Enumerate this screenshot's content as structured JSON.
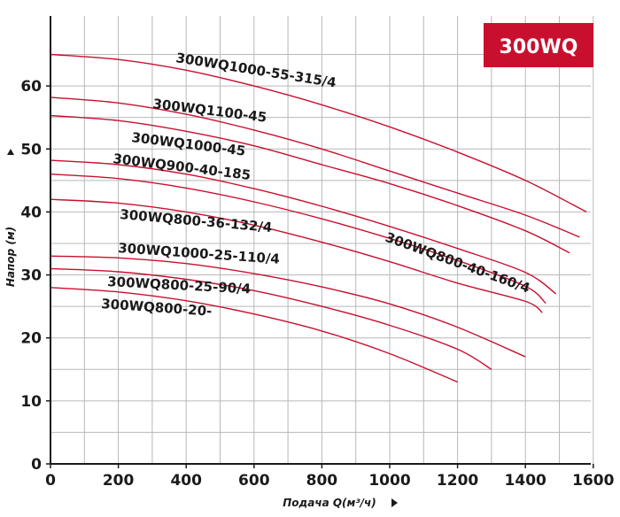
{
  "badge": {
    "text": "300WQ",
    "color": "#c8102e"
  },
  "colors": {
    "curve": "#c8102e",
    "grid": "#b8b8b8",
    "axis": "#1a1a1a"
  },
  "chart_data": {
    "type": "line",
    "title": "",
    "xlabel": "Подача Q(м³/ч)",
    "ylabel": "Напор (м)",
    "xlim": [
      0,
      1600
    ],
    "ylim": [
      0,
      65
    ],
    "xticks": [
      0,
      200,
      400,
      600,
      800,
      1000,
      1200,
      1400,
      1600
    ],
    "yticks": [
      0,
      10,
      20,
      30,
      40,
      50,
      60
    ],
    "grid": true,
    "series": [
      {
        "name": "300WQ1000-55-315/4",
        "x": [
          0,
          200,
          400,
          600,
          800,
          1000,
          1200,
          1400,
          1580
        ],
        "y": [
          65,
          64.2,
          62.5,
          60,
          57,
          53.5,
          49.5,
          45,
          40
        ]
      },
      {
        "name": "300WQ1100-45",
        "x": [
          0,
          200,
          400,
          600,
          800,
          1000,
          1200,
          1400,
          1560
        ],
        "y": [
          58.2,
          57.3,
          55.5,
          53,
          50,
          46.5,
          43,
          39.5,
          36
        ]
      },
      {
        "name": "300WQ1000-45",
        "x": [
          0,
          200,
          400,
          600,
          800,
          1000,
          1200,
          1400,
          1530
        ],
        "y": [
          55.3,
          54.5,
          52.8,
          50.5,
          47.5,
          44.5,
          41,
          37,
          33.5
        ]
      },
      {
        "name": "300WQ900-40-185",
        "x": [
          0,
          200,
          400,
          600,
          800,
          1000,
          1200,
          1400,
          1490
        ],
        "y": [
          48.2,
          47.5,
          46,
          43.7,
          40.9,
          37.7,
          34.2,
          30.4,
          27
        ]
      },
      {
        "name": "300WQ800-40-160/4",
        "x": [
          0,
          200,
          400,
          600,
          800,
          1000,
          1200,
          1400,
          1460
        ],
        "y": [
          46,
          45.3,
          43.8,
          41.6,
          38.9,
          35.8,
          32.3,
          28.2,
          25.5
        ]
      },
      {
        "name": "300WQ800-36-132/4",
        "x": [
          0,
          200,
          400,
          600,
          800,
          1000,
          1200,
          1400,
          1450
        ],
        "y": [
          42,
          41.4,
          40,
          37.9,
          35.2,
          32.1,
          28.7,
          25.8,
          24
        ]
      },
      {
        "name": "300WQ1000-25-110/4",
        "x": [
          0,
          200,
          400,
          600,
          800,
          1000,
          1200,
          1400
        ],
        "y": [
          33,
          32.7,
          31.8,
          30.2,
          28.1,
          25.4,
          21.7,
          17
        ]
      },
      {
        "name": "300WQ800-25-90/4",
        "x": [
          0,
          200,
          400,
          600,
          800,
          1000,
          1200,
          1300
        ],
        "y": [
          31,
          30.5,
          29.3,
          27.5,
          25,
          22,
          18.2,
          15
        ]
      },
      {
        "name": "300WQ800-20-",
        "x": [
          0,
          200,
          400,
          600,
          800,
          1000,
          1200
        ],
        "y": [
          28,
          27.3,
          25.9,
          23.8,
          21.1,
          17.5,
          13
        ]
      }
    ],
    "labels": [
      {
        "text": "300WQ1000-55-315/4"
      },
      {
        "text": "300WQ1100-45"
      },
      {
        "text": "300WQ1000-45"
      },
      {
        "text": "300WQ900-40-185"
      },
      {
        "text": "300WQ800-40-160/4"
      },
      {
        "text": "300WQ800-36-132/4"
      },
      {
        "text": "300WQ1000-25-110/4"
      },
      {
        "text": "300WQ800-25-90/4"
      },
      {
        "text": "300WQ800-20-"
      }
    ]
  }
}
